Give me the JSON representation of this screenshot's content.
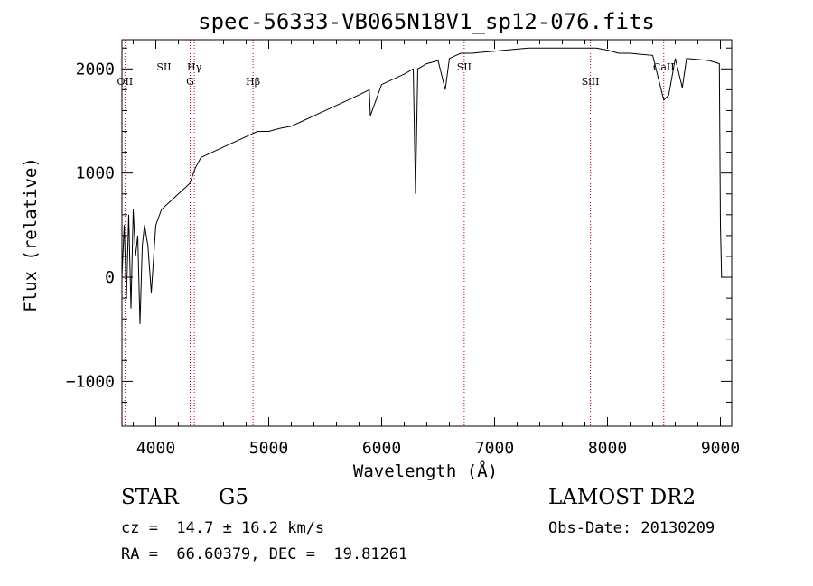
{
  "chart_data": {
    "type": "line",
    "title": "spec-56333-VB065N18V1_sp12-076.fits",
    "xlabel": "Wavelength (Å)",
    "ylabel": "Flux (relative)",
    "xlim": [
      3700,
      9100
    ],
    "ylim": [
      -1430,
      2280
    ],
    "xticks": [
      4000,
      5000,
      6000,
      7000,
      8000,
      9000
    ],
    "yticks": [
      -1000,
      0,
      1000,
      2000
    ],
    "x_tick_labels": [
      "4000",
      "5000",
      "6000",
      "7000",
      "8000",
      "9000"
    ],
    "y_tick_labels": [
      "−1000",
      "0",
      "1000",
      "2000"
    ],
    "grid": false,
    "line_color": "#000000",
    "marker_color": "#cc0000",
    "series": [
      {
        "x": [
          3700,
          3720,
          3740,
          3760,
          3780,
          3800,
          3820,
          3840,
          3860,
          3880,
          3900,
          3930,
          3960,
          4000,
          4050,
          4100,
          4150,
          4200,
          4250,
          4300,
          4350,
          4400,
          4500,
          4600,
          4700,
          4800,
          4900,
          5000,
          5100,
          5200,
          5300,
          5400,
          5500,
          5600,
          5700,
          5800,
          5890,
          5900,
          6000,
          6100,
          6200,
          6280,
          6300,
          6320,
          6400,
          6500,
          6563,
          6600,
          6700,
          6800,
          6900,
          7000,
          7100,
          7200,
          7300,
          7400,
          7500,
          7600,
          7700,
          7800,
          7900,
          8000,
          8100,
          8200,
          8300,
          8400,
          8498,
          8542,
          8600,
          8662,
          8700,
          8800,
          8900,
          8990,
          9000,
          9010
        ],
        "y": [
          0,
          500,
          -200,
          600,
          -300,
          650,
          200,
          400,
          -450,
          300,
          500,
          300,
          -150,
          500,
          650,
          700,
          750,
          800,
          850,
          900,
          1050,
          1150,
          1200,
          1250,
          1300,
          1350,
          1400,
          1400,
          1430,
          1450,
          1500,
          1550,
          1600,
          1650,
          1700,
          1750,
          1800,
          1550,
          1850,
          1900,
          1950,
          2000,
          800,
          2000,
          2050,
          2080,
          1800,
          2100,
          2150,
          2150,
          2160,
          2170,
          2180,
          2190,
          2200,
          2200,
          2200,
          2200,
          2200,
          2200,
          2200,
          2180,
          2150,
          2150,
          2140,
          2130,
          1700,
          1750,
          2100,
          1820,
          2100,
          2090,
          2080,
          2050,
          500,
          0
        ]
      }
    ],
    "line_markers": [
      {
        "label": "OII",
        "x": 3727
      },
      {
        "label": "SII",
        "x": 4072
      },
      {
        "label": "G",
        "x": 4304
      },
      {
        "label": "Hγ",
        "x": 4341
      },
      {
        "label": "Hβ",
        "x": 4861
      },
      {
        "label": "SII",
        "x": 6731
      },
      {
        "label": "SiII",
        "x": 7849
      },
      {
        "label": "CaII",
        "x": 8498
      }
    ]
  },
  "footer": {
    "object_type": "STAR",
    "subclass": "G5",
    "redshift": "cz =  14.7 ± 16.2 km/s",
    "coords": "RA =  66.60379, DEC =  19.81261",
    "survey": "LAMOST DR2",
    "obs_date": "Obs-Date: 20130209"
  }
}
